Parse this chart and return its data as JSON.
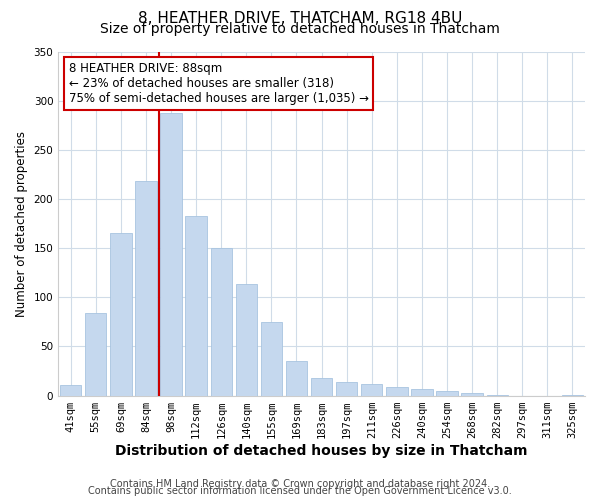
{
  "title": "8, HEATHER DRIVE, THATCHAM, RG18 4BU",
  "subtitle": "Size of property relative to detached houses in Thatcham",
  "xlabel": "Distribution of detached houses by size in Thatcham",
  "ylabel": "Number of detached properties",
  "footer_line1": "Contains HM Land Registry data © Crown copyright and database right 2024.",
  "footer_line2": "Contains public sector information licensed under the Open Government Licence v3.0.",
  "bar_labels": [
    "41sqm",
    "55sqm",
    "69sqm",
    "84sqm",
    "98sqm",
    "112sqm",
    "126sqm",
    "140sqm",
    "155sqm",
    "169sqm",
    "183sqm",
    "197sqm",
    "211sqm",
    "226sqm",
    "240sqm",
    "254sqm",
    "268sqm",
    "282sqm",
    "297sqm",
    "311sqm",
    "325sqm"
  ],
  "bar_values": [
    11,
    84,
    165,
    218,
    287,
    183,
    150,
    114,
    75,
    35,
    18,
    14,
    12,
    9,
    7,
    5,
    3,
    1,
    0,
    0,
    1
  ],
  "bar_color": "#c5d8ee",
  "bar_edge_color": "#a8c4e0",
  "highlight_bar_index": 3,
  "highlight_line_color": "#cc0000",
  "annotation_line1": "8 HEATHER DRIVE: 88sqm",
  "annotation_line2": "← 23% of detached houses are smaller (318)",
  "annotation_line3": "75% of semi-detached houses are larger (1,035) →",
  "annotation_box_edge_color": "#cc0000",
  "annotation_box_face_color": "#ffffff",
  "ylim": [
    0,
    350
  ],
  "yticks": [
    0,
    50,
    100,
    150,
    200,
    250,
    300,
    350
  ],
  "title_fontsize": 11,
  "subtitle_fontsize": 10,
  "xlabel_fontsize": 10,
  "ylabel_fontsize": 8.5,
  "tick_fontsize": 7.5,
  "annotation_fontsize": 8.5,
  "footer_fontsize": 7,
  "background_color": "#ffffff",
  "grid_color": "#d0dce8"
}
